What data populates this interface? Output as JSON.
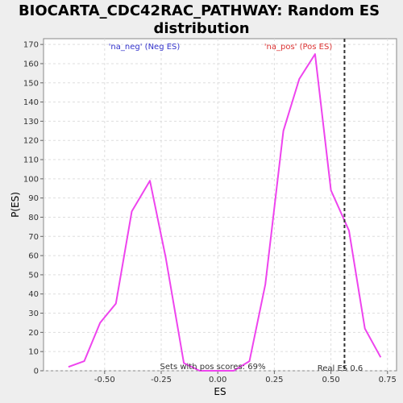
{
  "chart_data": {
    "type": "line",
    "title_line1": "BIOCARTA_CDC42RAC_PATHWAY: Random ES",
    "title_line2": "distribution",
    "xlabel": "ES",
    "ylabel": "P(ES)",
    "xlim": [
      -0.77,
      0.79
    ],
    "ylim": [
      0,
      173
    ],
    "x_ticks": [
      -0.5,
      -0.25,
      0.0,
      0.25,
      0.5,
      0.75
    ],
    "x_tick_labels": [
      "-0.50",
      "-0.25",
      "0.00",
      "0.25",
      "0.50",
      "0.75"
    ],
    "y_ticks": [
      0,
      10,
      20,
      30,
      40,
      50,
      60,
      70,
      80,
      90,
      100,
      110,
      120,
      130,
      140,
      150,
      160,
      170
    ],
    "y_tick_labels": [
      "0",
      "10",
      "20",
      "30",
      "40",
      "50",
      "60",
      "70",
      "80",
      "90",
      "100",
      "110",
      "120",
      "130",
      "140",
      "150",
      "160",
      "170"
    ],
    "grid": true,
    "series": [
      {
        "color": "#ee44ee",
        "x": [
          -0.66,
          -0.59,
          -0.52,
          -0.45,
          -0.38,
          -0.3,
          -0.23,
          -0.15,
          -0.08,
          0.0,
          0.07,
          0.14,
          0.21,
          0.29,
          0.36,
          0.43,
          0.5,
          0.58,
          0.65,
          0.72
        ],
        "y": [
          2,
          5,
          25,
          35,
          83,
          99,
          59,
          4,
          0,
          0,
          0,
          5,
          45,
          125,
          152,
          165,
          94,
          73,
          22,
          7
        ]
      }
    ],
    "real_es": {
      "x": 0.56,
      "label": "Real ES 0.6",
      "color": "#333333"
    },
    "annotations": {
      "neg_label": "'na_neg' (Neg ES)",
      "neg_color": "#3333cc",
      "pos_label": "'na_pos' (Pos ES)",
      "pos_color": "#dd3333",
      "sets_text": "Sets with pos scores: 69%"
    }
  }
}
